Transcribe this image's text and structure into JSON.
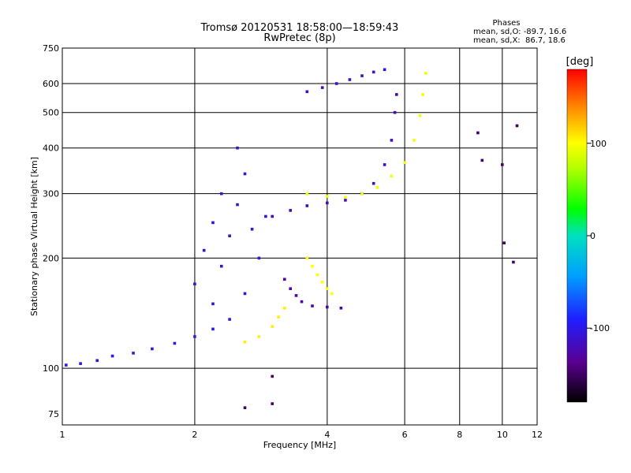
{
  "chart_data": {
    "type": "scatter",
    "title": "Tromsø 20120531 18:58:00—18:59:43",
    "subtitle": "RwPretec (8p)",
    "xlabel": "Frequency [MHz]",
    "ylabel": "Stationary phase Virtual Height [km]",
    "x_scale": "log",
    "y_scale": "log",
    "xlim": [
      1,
      12
    ],
    "ylim": [
      70,
      750
    ],
    "grid": true,
    "x_ticks": [
      "1",
      "2",
      "4",
      "6",
      "8",
      "10",
      "12"
    ],
    "y_ticks": [
      "75",
      "100",
      "200",
      "300",
      "400",
      "500",
      "600",
      "750"
    ],
    "x_tick_values": [
      1,
      2,
      4,
      6,
      8,
      10,
      12
    ],
    "y_tick_values": [
      75,
      100,
      200,
      300,
      400,
      500,
      600,
      750
    ],
    "phases_box": {
      "heading": "Phases",
      "line_o": "mean, sd,O: -89.7, 16.6",
      "line_x": "mean, sd,X:  86.7, 18.6"
    },
    "colorbar": {
      "unit": "[deg]",
      "range": [
        -180,
        180
      ],
      "ticks": [
        "100",
        "0",
        "-100"
      ],
      "tick_values": [
        100,
        0,
        -100
      ]
    },
    "traces": [
      {
        "trace": "O-lower-F",
        "phase": -100,
        "points": [
          [
            1.02,
            102
          ],
          [
            1.1,
            103
          ],
          [
            1.2,
            105
          ],
          [
            1.3,
            108
          ],
          [
            1.45,
            110
          ],
          [
            1.6,
            113
          ],
          [
            1.8,
            117
          ],
          [
            2.0,
            122
          ],
          [
            2.2,
            128
          ],
          [
            2.4,
            136
          ]
        ]
      },
      {
        "trace": "O-cloud",
        "phase": -110,
        "points": [
          [
            2.0,
            170
          ],
          [
            2.1,
            210
          ],
          [
            2.2,
            250
          ],
          [
            2.3,
            190
          ],
          [
            2.4,
            230
          ],
          [
            2.5,
            280
          ],
          [
            2.6,
            160
          ],
          [
            2.7,
            240
          ],
          [
            2.8,
            200
          ],
          [
            2.3,
            300
          ],
          [
            2.6,
            340
          ],
          [
            2.5,
            400
          ],
          [
            2.2,
            150
          ],
          [
            2.9,
            260
          ]
        ]
      },
      {
        "trace": "O-F2",
        "phase": -120,
        "points": [
          [
            3.0,
            260
          ],
          [
            3.3,
            270
          ],
          [
            3.6,
            278
          ],
          [
            4.0,
            283
          ],
          [
            4.4,
            288
          ],
          [
            4.8,
            300
          ],
          [
            5.1,
            320
          ],
          [
            5.4,
            360
          ],
          [
            5.6,
            420
          ],
          [
            5.7,
            500
          ],
          [
            5.75,
            560
          ]
        ]
      },
      {
        "trace": "O-upper",
        "phase": -115,
        "points": [
          [
            3.6,
            570
          ],
          [
            3.9,
            585
          ],
          [
            4.2,
            600
          ],
          [
            4.5,
            615
          ],
          [
            4.8,
            630
          ],
          [
            5.1,
            645
          ],
          [
            5.4,
            655
          ]
        ]
      },
      {
        "trace": "O-mid",
        "phase": -130,
        "points": [
          [
            3.2,
            175
          ],
          [
            3.3,
            165
          ],
          [
            3.4,
            158
          ],
          [
            3.5,
            152
          ],
          [
            3.7,
            148
          ],
          [
            4.0,
            147
          ],
          [
            4.3,
            146
          ]
        ]
      },
      {
        "trace": "X-F2",
        "phase": 95,
        "points": [
          [
            3.6,
            300
          ],
          [
            4.0,
            295
          ],
          [
            4.4,
            293
          ],
          [
            4.8,
            300
          ],
          [
            5.2,
            312
          ],
          [
            5.6,
            335
          ],
          [
            6.0,
            365
          ],
          [
            6.3,
            420
          ],
          [
            6.5,
            490
          ],
          [
            6.6,
            560
          ],
          [
            6.7,
            640
          ]
        ]
      },
      {
        "trace": "X-mid",
        "phase": 100,
        "points": [
          [
            3.6,
            200
          ],
          [
            3.7,
            190
          ],
          [
            3.8,
            180
          ],
          [
            3.9,
            172
          ],
          [
            4.0,
            165
          ],
          [
            4.1,
            160
          ]
        ]
      },
      {
        "trace": "X-low",
        "phase": 105,
        "points": [
          [
            2.6,
            118
          ],
          [
            2.8,
            122
          ],
          [
            3.0,
            130
          ],
          [
            3.1,
            138
          ],
          [
            3.2,
            146
          ]
        ]
      },
      {
        "trace": "scattered",
        "phase": -150,
        "points": [
          [
            3.0,
            95
          ],
          [
            3.0,
            80
          ],
          [
            2.6,
            78
          ],
          [
            10.0,
            360
          ],
          [
            10.1,
            220
          ],
          [
            10.8,
            460
          ],
          [
            10.6,
            195
          ],
          [
            8.8,
            440
          ],
          [
            9.0,
            370
          ]
        ]
      }
    ]
  }
}
